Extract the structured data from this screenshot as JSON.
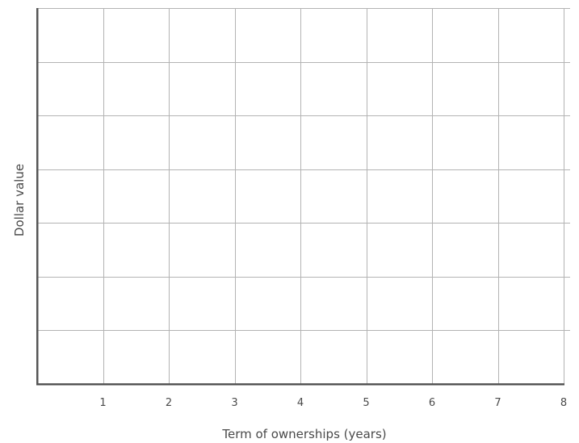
{
  "chart_data": {
    "type": "line",
    "title": "",
    "xlabel": "Term of ownerships (years)",
    "ylabel": "Dollar value",
    "xlim": [
      0,
      8
    ],
    "x_ticks": [
      1,
      2,
      3,
      4,
      5,
      6,
      7,
      8
    ],
    "x_tick_labels": [
      "1",
      "2",
      "3",
      "4",
      "5",
      "6",
      "7",
      "8"
    ],
    "y_grid_count": 7,
    "y_tick_labels": [],
    "grid": true,
    "series": []
  }
}
